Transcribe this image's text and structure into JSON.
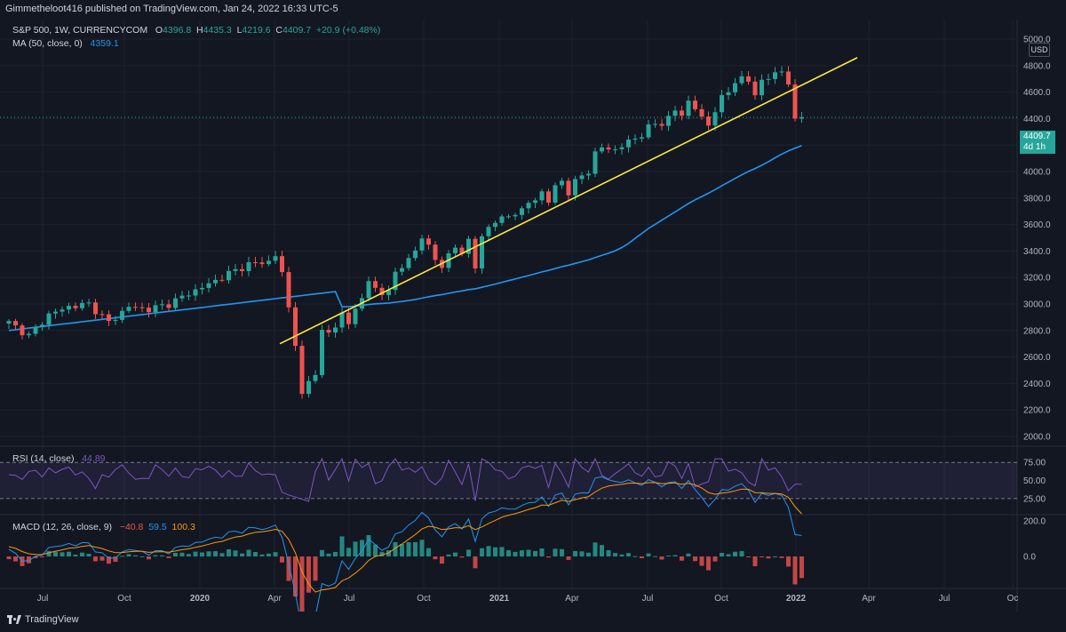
{
  "header": {
    "published": "Gimmetheloot416 published on TradingView.com, Jan 24, 2022 16:33 UTC-5"
  },
  "legend": {
    "symbol": "S&P 500, 1W, CURRENCYCOM",
    "o_label": "O",
    "o_value": "4396.8",
    "h_label": "H",
    "h_value": "4435.3",
    "l_label": "L",
    "l_value": "4219.6",
    "c_label": "C",
    "c_value": "4409.7",
    "change": "+20.9 (+0.48%)",
    "ma_label": "MA (50, close, 0)",
    "ma_value": "4359.1",
    "rsi_label": "RSI (14, close)",
    "rsi_value": "44.89",
    "macd_label": "MACD (12, 26, close, 9)",
    "macd_v1": "−40.8",
    "macd_v2": "59.5",
    "macd_v3": "100.3"
  },
  "currency": "USD",
  "last_price": {
    "price": "4409.7",
    "countdown": "4d 1h"
  },
  "footer": {
    "brand": "TradingView"
  },
  "colors": {
    "background": "#131722",
    "up": "#26a69a",
    "down": "#ef5350",
    "ma": "#2196f3",
    "trendline": "#ffeb3b",
    "rsi": "#7e57c2",
    "macd": "#2196f3",
    "signal": "#ff9800"
  },
  "chart_data": {
    "type": "candlestick",
    "timeframe": "1W",
    "x_ticks": [
      "Jul",
      "Oct",
      "2020",
      "Apr",
      "Jul",
      "Oct",
      "2021",
      "Apr",
      "Jul",
      "Oct",
      "2022",
      "Apr",
      "Jul",
      "Oc"
    ],
    "y_ticks": [
      "5000.0",
      "4800.0",
      "4600.0",
      "4400.0",
      "4200.0",
      "4000.0",
      "3800.0",
      "3600.0",
      "3400.0",
      "3200.0",
      "3000.0",
      "2800.0",
      "2600.0",
      "2400.0",
      "2200.0",
      "2000.0"
    ],
    "ylim": [
      2000,
      5000
    ],
    "close_path": [
      [
        0,
        2860
      ],
      [
        3,
        2760
      ],
      [
        6,
        2920
      ],
      [
        9,
        2980
      ],
      [
        12,
        3000
      ],
      [
        15,
        2860
      ],
      [
        18,
        2980
      ],
      [
        21,
        2960
      ],
      [
        24,
        3000
      ],
      [
        27,
        3080
      ],
      [
        30,
        3150
      ],
      [
        33,
        3230
      ],
      [
        36,
        3300
      ],
      [
        39,
        3320
      ],
      [
        40,
        3370
      ],
      [
        41,
        3230
      ],
      [
        42,
        2970
      ],
      [
        43,
        2710
      ],
      [
        44,
        2300
      ],
      [
        45,
        2410
      ],
      [
        46,
        2490
      ],
      [
        47,
        2790
      ],
      [
        48,
        2780
      ],
      [
        49,
        2830
      ],
      [
        50,
        2930
      ],
      [
        51,
        2860
      ],
      [
        52,
        2950
      ],
      [
        53,
        3040
      ],
      [
        54,
        3200
      ],
      [
        55,
        3100
      ],
      [
        56,
        3060
      ],
      [
        57,
        3130
      ],
      [
        58,
        3230
      ],
      [
        59,
        3270
      ],
      [
        60,
        3350
      ],
      [
        61,
        3400
      ],
      [
        62,
        3510
      ],
      [
        63,
        3430
      ],
      [
        64,
        3330
      ],
      [
        65,
        3300
      ],
      [
        66,
        3360
      ],
      [
        67,
        3420
      ],
      [
        68,
        3400
      ],
      [
        69,
        3480
      ],
      [
        70,
        3270
      ],
      [
        71,
        3510
      ],
      [
        72,
        3580
      ],
      [
        73,
        3630
      ],
      [
        74,
        3640
      ],
      [
        75,
        3660
      ],
      [
        76,
        3700
      ],
      [
        77,
        3700
      ],
      [
        78,
        3760
      ],
      [
        79,
        3800
      ],
      [
        80,
        3840
      ],
      [
        81,
        3770
      ],
      [
        82,
        3890
      ],
      [
        83,
        3930
      ],
      [
        84,
        3840
      ],
      [
        85,
        3920
      ],
      [
        86,
        3970
      ],
      [
        87,
        4010
      ],
      [
        88,
        4130
      ],
      [
        89,
        4180
      ],
      [
        90,
        4180
      ],
      [
        91,
        4160
      ],
      [
        92,
        4190
      ],
      [
        93,
        4230
      ],
      [
        94,
        4250
      ],
      [
        95,
        4280
      ],
      [
        96,
        4330
      ],
      [
        97,
        4360
      ],
      [
        98,
        4370
      ],
      [
        99,
        4400
      ],
      [
        100,
        4460
      ],
      [
        101,
        4430
      ],
      [
        102,
        4530
      ],
      [
        103,
        4480
      ],
      [
        104,
        4400
      ],
      [
        105,
        4350
      ],
      [
        106,
        4470
      ],
      [
        107,
        4550
      ],
      [
        108,
        4600
      ],
      [
        109,
        4690
      ],
      [
        110,
        4700
      ],
      [
        111,
        4680
      ],
      [
        112,
        4580
      ],
      [
        113,
        4690
      ],
      [
        114,
        4710
      ],
      [
        115,
        4730
      ],
      [
        116,
        4760
      ],
      [
        117,
        4680
      ],
      [
        118,
        4400
      ],
      [
        119,
        4410
      ]
    ],
    "ma50": {
      "name": "MA (50, close, 0)",
      "value": 4359.1
    },
    "trendline": {
      "from": [
        "Mar 2020",
        2700
      ],
      "to": [
        "Mar 2022",
        4860
      ]
    },
    "rsi": {
      "levels": [
        75,
        50,
        25
      ],
      "last": 44.89
    },
    "macd": {
      "levels": [
        200,
        0
      ],
      "macd": -40.8,
      "signal": 59.5,
      "histogram": 100.3
    }
  },
  "rsi_axis": [
    "75.00",
    "50.00",
    "25.00"
  ],
  "macd_axis": [
    "200.0",
    "0.0"
  ]
}
